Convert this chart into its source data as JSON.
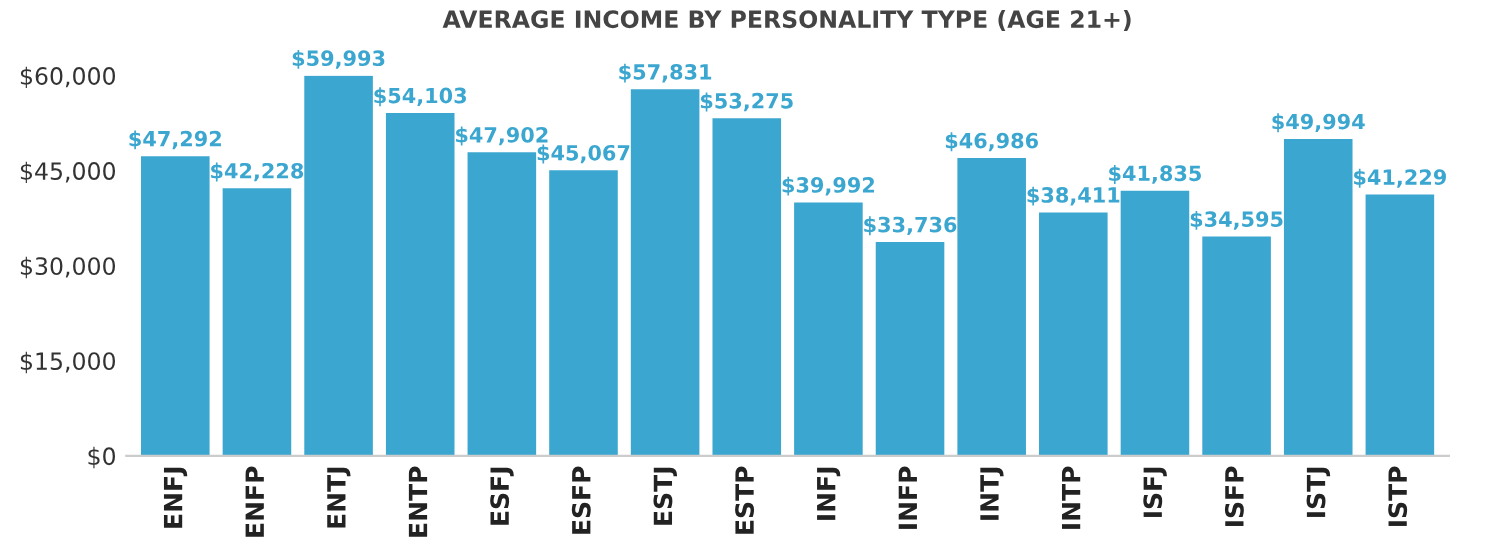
{
  "chart_data": {
    "type": "bar",
    "title": "AVERAGE INCOME BY PERSONALITY TYPE (AGE 21+)",
    "categories": [
      "ENFJ",
      "ENFP",
      "ENTJ",
      "ENTP",
      "ESFJ",
      "ESFP",
      "ESTJ",
      "ESTP",
      "INFJ",
      "INFP",
      "INTJ",
      "INTP",
      "ISFJ",
      "ISFP",
      "ISTJ",
      "ISTP"
    ],
    "values": [
      47292,
      42228,
      59993,
      54103,
      47902,
      45067,
      57831,
      53275,
      39992,
      33736,
      46986,
      38411,
      41835,
      34595,
      49994,
      41229
    ],
    "value_labels": [
      "$47,292",
      "$42,228",
      "$59,993",
      "$54,103",
      "$47,902",
      "$45,067",
      "$57,831",
      "$53,275",
      "$39,992",
      "$33,736",
      "$46,986",
      "$38,411",
      "$41,835",
      "$34,595",
      "$49,994",
      "$41,229"
    ],
    "color": "#3ba6cf",
    "ylim": [
      0,
      60000
    ],
    "yticks": [
      {
        "value": 0,
        "label": "$0"
      },
      {
        "value": 15000,
        "label": "$15,000"
      },
      {
        "value": 30000,
        "label": "$30,000"
      },
      {
        "value": 45000,
        "label": "$45,000"
      },
      {
        "value": 60000,
        "label": "$60,000"
      }
    ],
    "grid": false,
    "legend": false
  }
}
